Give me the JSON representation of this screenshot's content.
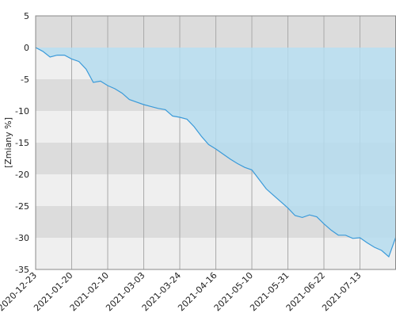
{
  "chart_data": {
    "type": "area",
    "ylabel": "[Zmiany %]",
    "x": [
      "2020-12-23",
      "2020-12-28",
      "2020-12-31",
      "2021-01-06",
      "2021-01-13",
      "2021-01-20",
      "2021-01-25",
      "2021-01-28",
      "2021-02-02",
      "2021-02-05",
      "2021-02-10",
      "2021-02-15",
      "2021-02-18",
      "2021-02-23",
      "2021-02-26",
      "2021-03-03",
      "2021-03-08",
      "2021-03-11",
      "2021-03-16",
      "2021-03-19",
      "2021-03-24",
      "2021-03-29",
      "2021-04-01",
      "2021-04-07",
      "2021-04-12",
      "2021-04-16",
      "2021-04-21",
      "2021-04-26",
      "2021-04-29",
      "2021-05-05",
      "2021-05-10",
      "2021-05-13",
      "2021-05-18",
      "2021-05-21",
      "2021-05-26",
      "2021-05-31",
      "2021-06-04",
      "2021-06-09",
      "2021-06-14",
      "2021-06-17",
      "2021-06-22",
      "2021-06-25",
      "2021-06-30",
      "2021-07-05",
      "2021-07-08",
      "2021-07-13",
      "2021-07-16",
      "2021-07-21",
      "2021-07-26",
      "2021-07-29",
      "2021-08-03"
    ],
    "series": [
      {
        "color": "#3a9ad9",
        "fill": "#b5dcee",
        "values": [
          0,
          -0.6,
          -1.5,
          -1.2,
          -1.2,
          -1.8,
          -2.2,
          -3.4,
          -5.5,
          -5.3,
          -6,
          -6.5,
          -7.2,
          -8.2,
          -8.6,
          -9,
          -9.3,
          -9.6,
          -9.8,
          -10.8,
          -11,
          -11.3,
          -12.5,
          -14,
          -15.3,
          -16,
          -16.8,
          -17.6,
          -18.3,
          -18.9,
          -19.3,
          -20.8,
          -22.3,
          -23.3,
          -24.3,
          -25.3,
          -26.5,
          -26.8,
          -26.4,
          -26.7,
          -27.8,
          -28.8,
          -29.6,
          -29.6,
          -30.1,
          -30,
          -30.8,
          -31.5,
          -32,
          -33,
          -29.8
        ]
      }
    ],
    "xlim": [
      "2020-12-23",
      "2021-08-03"
    ],
    "xticks": [
      "2020-12-23",
      "2021-01-20",
      "2021-02-10",
      "2021-03-03",
      "2021-03-24",
      "2021-04-16",
      "2021-05-10",
      "2021-05-31",
      "2021-06-22",
      "2021-07-13"
    ],
    "ylim": [
      -35,
      5
    ],
    "yticks": [
      5,
      0,
      -5,
      -10,
      -15,
      -20,
      -25,
      -30,
      -35
    ],
    "grid": true
  }
}
